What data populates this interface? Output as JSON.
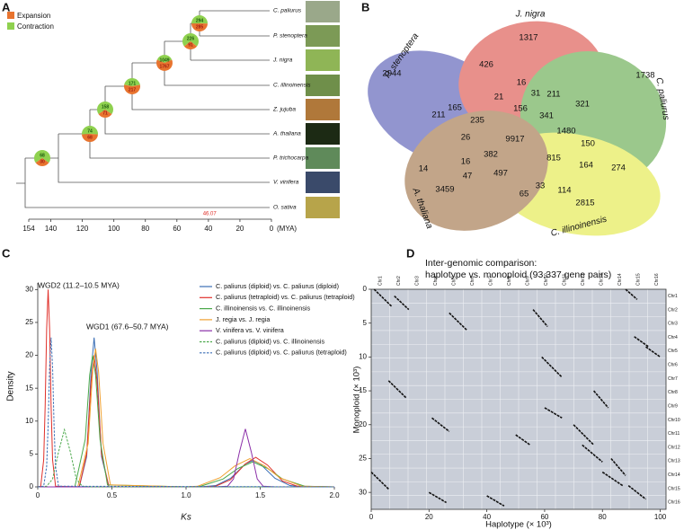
{
  "panel_a": {
    "letter": "A",
    "legend": {
      "expansion": "Expansion",
      "contraction": "Contraction"
    },
    "taxa": [
      "C. paliurus",
      "P. stenoptera",
      "J. nigra",
      "C. illinoinensis",
      "Z. jujuba",
      "A. thaliana",
      "P. trichocarpa",
      "V. vinifera",
      "O. sativa"
    ],
    "nodes": [
      {
        "contraction": 294,
        "expansion": 285
      },
      {
        "contraction": 226,
        "expansion": 91
      },
      {
        "contraction": 1049,
        "expansion": 1767
      },
      {
        "contraction": 171,
        "expansion": 217
      },
      {
        "contraction": 158,
        "expansion": 71
      },
      {
        "contraction": 74,
        "expansion": 68
      },
      {
        "contraction": 68,
        "expansion": 30
      }
    ],
    "xlim": [
      154,
      0
    ],
    "xticks": [
      154,
      140,
      120,
      100,
      80,
      60,
      40,
      20,
      0
    ],
    "unit": "(MYA)",
    "annotation": 46.07
  },
  "panel_b": {
    "letter": "B",
    "sets": [
      "P. stenoptera",
      "J. nigra",
      "C. paliurus",
      "C. illinoinensis",
      "A. thaliana"
    ],
    "counts": [
      1317,
      2944,
      426,
      16,
      31,
      211,
      1738,
      21,
      156,
      341,
      321,
      211,
      165,
      235,
      1480,
      150,
      26,
      9917,
      14,
      382,
      815,
      164,
      274,
      16,
      497,
      47,
      65,
      33,
      114,
      3459,
      2815
    ]
  },
  "chart_data": [
    {
      "type": "line",
      "panel": "C",
      "xlabel": "Ks",
      "ylabel": "Density",
      "annotations": [
        "WGD2 (11.2–10.5 MYA)",
        "WGD1 (67.6–50.7 MYA)"
      ],
      "xlim": [
        0,
        2
      ],
      "xticks": [
        0,
        0.5,
        {
          "value": 1,
          "label": "1.0"
        },
        1.5,
        {
          "value": 2,
          "label": "2.0"
        }
      ],
      "ylim": [
        0,
        31
      ],
      "yticks": [
        0,
        5,
        10,
        15,
        20,
        25,
        30
      ],
      "series": [
        {
          "name": "C. paliurus (diploid) vs. C. paliurus (diploid)",
          "color": "#3b6fb6",
          "style": "solid",
          "x": [
            0,
            0.28,
            0.33,
            0.36,
            0.38,
            0.4,
            0.43,
            0.48,
            1.1,
            1.2,
            1.3,
            1.4,
            1.45,
            1.5,
            1.6,
            1.7,
            1.8,
            2.0
          ],
          "values": [
            0,
            0,
            4.6,
            17.6,
            22.7,
            17.6,
            4.6,
            0,
            0,
            0.2,
            1.3,
            3.5,
            4,
            3.5,
            1.3,
            0.2,
            0,
            0
          ]
        },
        {
          "name": "C. paliurus (tetraploid) vs. C. paliurus (tetraploid)",
          "color": "#e0302a",
          "style": "solid",
          "x": [
            0,
            0.02,
            0.04,
            0.05,
            0.06,
            0.07,
            0.08,
            0.09,
            0.1,
            0.12,
            0.28,
            0.33,
            0.36,
            0.38,
            0.4,
            0.43,
            0.48,
            1.1,
            1.2,
            1.3,
            1.4,
            1.47,
            1.55,
            1.65,
            1.75,
            2.0
          ],
          "values": [
            0,
            0.1,
            4.1,
            12.3,
            24,
            30,
            24,
            12.3,
            4.1,
            0.1,
            0,
            5,
            16,
            20,
            16,
            5,
            0,
            0,
            0.1,
            1.1,
            3.5,
            4.5,
            3.3,
            0.9,
            0.1,
            0
          ]
        },
        {
          "name": "C. illinoinensis vs. C. illinoinensis",
          "color": "#4aa84a",
          "style": "solid",
          "x": [
            0,
            0.25,
            0.32,
            0.35,
            0.37,
            0.39,
            0.42,
            0.47,
            1.0,
            1.1,
            1.25,
            1.35,
            1.45,
            1.55,
            1.65,
            1.8,
            2.0
          ],
          "values": [
            0,
            0,
            7.2,
            17,
            20,
            17,
            7.2,
            0.3,
            0,
            0.1,
            1.2,
            2.8,
            3.8,
            2.8,
            1.2,
            0.1,
            0
          ]
        },
        {
          "name": "J. regia vs. J. regia",
          "color": "#f0a030",
          "style": "solid",
          "x": [
            0,
            0.27,
            0.34,
            0.37,
            0.39,
            0.41,
            0.44,
            0.49,
            1.0,
            1.08,
            1.23,
            1.33,
            1.43,
            1.53,
            1.63,
            1.78,
            2.0
          ],
          "values": [
            0,
            0,
            6.6,
            17.5,
            21,
            17.5,
            6.6,
            0.3,
            0,
            0.1,
            1.4,
            3.2,
            4.3,
            3.2,
            1.4,
            0.1,
            0
          ]
        },
        {
          "name": "V. vinifera vs. V. vinifera",
          "color": "#8b2fa8",
          "style": "solid",
          "x": [
            0,
            1.2,
            1.28,
            1.32,
            1.36,
            1.4,
            1.44,
            1.48,
            1.52,
            1.6,
            2.0
          ],
          "values": [
            0,
            0,
            0.1,
            1.2,
            5.3,
            8.8,
            5.3,
            1.2,
            0.1,
            0,
            0
          ]
        },
        {
          "name": "C. paliurus (diploid) vs. C. illinoinensis",
          "color": "#4aa84a",
          "style": "dashed",
          "x": [
            0,
            0.06,
            0.1,
            0.14,
            0.18,
            0.22,
            0.26,
            0.3,
            0.36,
            2.0
          ],
          "values": [
            0,
            0.1,
            1.2,
            5.3,
            8.7,
            5.3,
            1.2,
            0.1,
            0,
            0
          ]
        },
        {
          "name": "C. paliurus (diploid) vs. C. paliurus (tetraploid)",
          "color": "#3b6fb6",
          "style": "dashed",
          "x": [
            0,
            0.04,
            0.06,
            0.07,
            0.08,
            0.09,
            0.1,
            0.11,
            0.12,
            0.14,
            2.0
          ],
          "values": [
            0,
            0.1,
            3.1,
            9.3,
            18.2,
            22.7,
            18.2,
            9.3,
            3.1,
            0.1,
            0
          ]
        }
      ]
    },
    {
      "type": "dotplot",
      "panel": "D",
      "title": "Inter-genomic comparison:",
      "subtitle": "haplotype vs. monoploid (93,337 gene pairs)",
      "xlabel": "Haplotype (× 10³)",
      "ylabel": "Monoploid (× 10³)",
      "xlim": [
        0,
        102
      ],
      "xticks": [
        0,
        20,
        40,
        60,
        80,
        100
      ],
      "ylim": [
        0,
        32.5
      ],
      "yticks": [
        0,
        5,
        10,
        15,
        20,
        25,
        30
      ],
      "background": "#c9ced8",
      "color": "#111111",
      "x_chromosomes": [
        "Chr1",
        "Chr2",
        "Chr3",
        "Chr4",
        "Chr5",
        "Chr6",
        "Chr7",
        "Chr8",
        "Chr9",
        "Chr10",
        "Chr11",
        "Chr12",
        "Chr13",
        "Chr14",
        "Chr15",
        "Chr16"
      ],
      "y_chromosomes": [
        "Chr1",
        "Chr2",
        "Chr3",
        "Chr4",
        "Chr5",
        "Chr6",
        "Chr7",
        "Chr8",
        "Chr9",
        "Chr10",
        "Chr11",
        "Chr12",
        "Chr13",
        "Chr14",
        "Chr15",
        "Chr16"
      ],
      "blocks": [
        {
          "x": [
            1,
            7
          ],
          "y": [
            0,
            2.5
          ]
        },
        {
          "x": [
            8,
            13
          ],
          "y": [
            1,
            3
          ]
        },
        {
          "x": [
            27,
            33
          ],
          "y": [
            3.5,
            6
          ]
        },
        {
          "x": [
            56,
            61
          ],
          "y": [
            3,
            5.5
          ]
        },
        {
          "x": [
            88,
            92
          ],
          "y": [
            0,
            1.5
          ]
        },
        {
          "x": [
            95,
            100
          ],
          "y": [
            8.5,
            10
          ]
        },
        {
          "x": [
            91,
            96
          ],
          "y": [
            7,
            8.5
          ]
        },
        {
          "x": [
            59,
            66
          ],
          "y": [
            10,
            13
          ]
        },
        {
          "x": [
            6,
            12
          ],
          "y": [
            13.5,
            16
          ]
        },
        {
          "x": [
            77,
            82
          ],
          "y": [
            15,
            17.5
          ]
        },
        {
          "x": [
            60,
            66
          ],
          "y": [
            17.5,
            19
          ]
        },
        {
          "x": [
            21,
            27
          ],
          "y": [
            19,
            21
          ]
        },
        {
          "x": [
            50,
            55
          ],
          "y": [
            21.5,
            23
          ]
        },
        {
          "x": [
            70,
            77
          ],
          "y": [
            20,
            23
          ]
        },
        {
          "x": [
            73,
            80
          ],
          "y": [
            23,
            25.5
          ]
        },
        {
          "x": [
            83,
            88
          ],
          "y": [
            25,
            27.5
          ]
        },
        {
          "x": [
            80,
            87
          ],
          "y": [
            27,
            29
          ]
        },
        {
          "x": [
            0,
            6
          ],
          "y": [
            27,
            29.5
          ]
        },
        {
          "x": [
            89,
            95
          ],
          "y": [
            29,
            31
          ]
        },
        {
          "x": [
            20,
            26
          ],
          "y": [
            30,
            31.5
          ]
        },
        {
          "x": [
            40,
            46
          ],
          "y": [
            30.5,
            32
          ]
        }
      ]
    }
  ]
}
